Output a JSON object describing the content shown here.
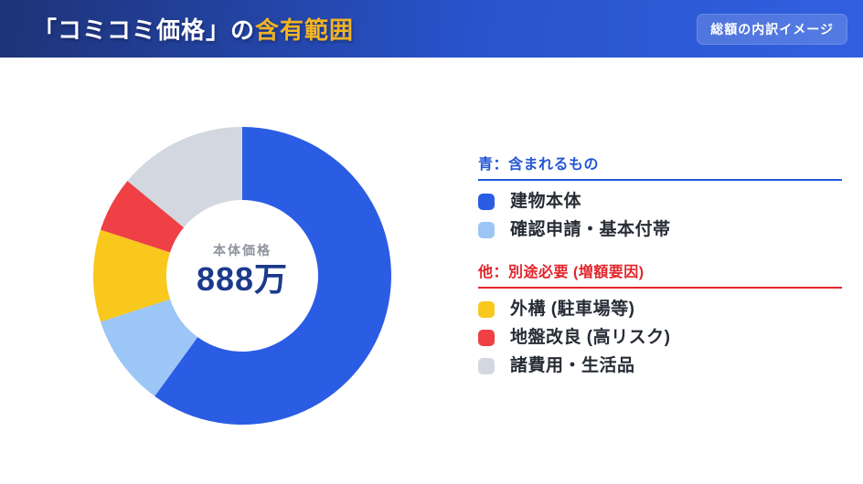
{
  "header": {
    "title_plain": "「コミコミ価格」の",
    "title_accent": "含有範囲",
    "accent_color": "#f2b423",
    "badge": "総額の内訳イメージ",
    "gradient": [
      "#1e3377",
      "#3160df"
    ]
  },
  "chart_data": {
    "type": "pie",
    "style": "donut",
    "title": "「コミコミ価格」の含有範囲",
    "center_label": "本体価格",
    "center_value": "888万",
    "start_angle_deg": 0,
    "direction": "clockwise",
    "inner_radius_ratio": 0.51,
    "legend_position": "right",
    "segments": [
      {
        "label": "建物本体",
        "percent": 60,
        "color": "#2b5ce4"
      },
      {
        "label": "確認申請・基本付帯",
        "percent": 10,
        "color": "#9cc6f6"
      },
      {
        "label": "外構 (駐車場等)",
        "percent": 10,
        "color": "#f8c81c"
      },
      {
        "label": "地盤改良 (高リスク)",
        "percent": 6,
        "color": "#ee4045"
      },
      {
        "label": "諸費用・生活品",
        "percent": 14,
        "color": "#d2d7e0"
      }
    ]
  },
  "legend": {
    "included": {
      "title": "青：含まれるもの",
      "color": "#2456d6",
      "items": [
        {
          "label": "建物本体",
          "color": "#2b5ce4"
        },
        {
          "label": "確認申請・基本付帯",
          "color": "#9cc6f6"
        }
      ]
    },
    "extra": {
      "title": "他：別途必要 (増額要因)",
      "color": "#e3242b",
      "items": [
        {
          "label": "外構 (駐車場等)",
          "color": "#f8c81c"
        },
        {
          "label": "地盤改良 (高リスク)",
          "color": "#ee4045"
        },
        {
          "label": "諸費用・生活品",
          "color": "#d2d7e0"
        }
      ]
    }
  }
}
